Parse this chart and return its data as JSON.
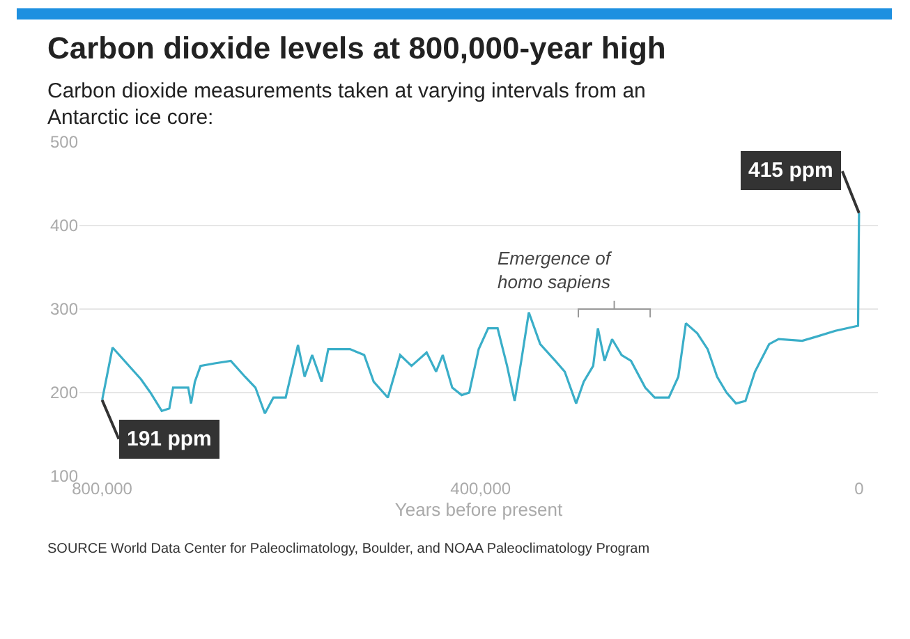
{
  "chart_data": {
    "type": "line",
    "title": "Carbon dioxide levels at 800,000-year high",
    "subtitle": "Carbon dioxide measurements taken at varying intervals from an Antarctic ice core:",
    "xlabel": "Years before present",
    "x": [
      800000,
      789000,
      774000,
      759000,
      749000,
      737000,
      729000,
      725000,
      709000,
      706000,
      702000,
      696000,
      681000,
      664000,
      649000,
      638000,
      628000,
      619000,
      606000,
      593000,
      586000,
      578000,
      568000,
      561000,
      538000,
      523000,
      513000,
      498000,
      485000,
      473000,
      457000,
      447000,
      440000,
      430000,
      420000,
      412000,
      402000,
      392000,
      382000,
      372000,
      364000,
      357000,
      349000,
      337000,
      321000,
      311000,
      299000,
      291000,
      281000,
      276000,
      269000,
      261000,
      251000,
      241000,
      226000,
      216000,
      201000,
      191000,
      183000,
      171000,
      160000,
      150000,
      140000,
      130000,
      120000,
      110000,
      95000,
      85000,
      60000,
      45000,
      25000,
      1000,
      0
    ],
    "series": [
      {
        "color": "#3aaec8",
        "values": [
          191,
          254,
          235,
          216,
          200,
          178,
          181,
          206,
          206,
          187,
          213,
          232,
          235,
          238,
          219,
          206,
          175,
          194,
          194,
          257,
          219,
          245,
          213,
          252,
          252,
          245,
          213,
          194,
          245,
          232,
          248,
          225,
          245,
          206,
          197,
          200,
          252,
          277,
          277,
          232,
          190,
          238,
          296,
          258,
          238,
          225,
          187,
          213,
          232,
          277,
          238,
          264,
          245,
          238,
          206,
          194,
          194,
          219,
          283,
          271,
          252,
          219,
          200,
          187,
          190,
          225,
          258,
          264,
          262,
          267,
          274,
          280,
          415
        ]
      }
    ],
    "xlim": [
      824000,
      -20000
    ],
    "xticks": [
      {
        "value": 800000,
        "label": "800,000"
      },
      {
        "value": 400000,
        "label": "400,000"
      },
      0
    ],
    "ylim": [
      100,
      500
    ],
    "yticks": [
      100,
      200,
      300,
      400,
      500
    ],
    "grid": "y",
    "marker": "none",
    "line_style": "solid",
    "annotations": [
      {
        "text": "415 ppm",
        "x": 0,
        "y": 415
      },
      {
        "text": "191 ppm",
        "x": 800000,
        "y": 191
      },
      "Emergence of homo sapiens",
      "SOURCE World Data Center for Paleoclimatology, Boulder, and NOAA Paleoclimatology Program"
    ]
  }
}
